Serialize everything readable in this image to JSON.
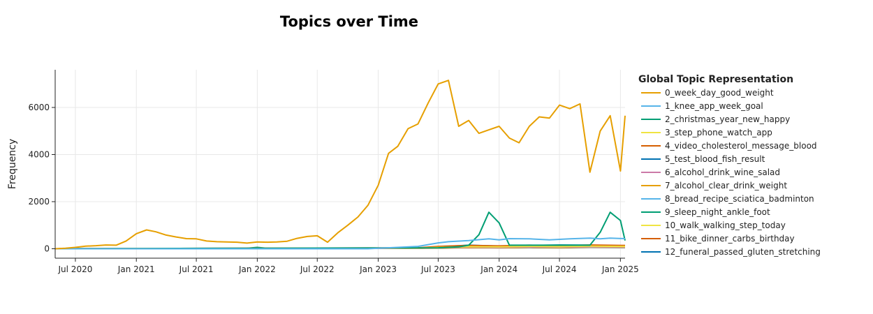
{
  "chart_data": {
    "type": "line",
    "title": "Topics over Time",
    "xlabel": "",
    "ylabel": "Frequency",
    "legend_title": "Global Topic Representation",
    "legend_position": "right",
    "grid": true,
    "x_ticks": [
      "Jul 2020",
      "Jan 2021",
      "Jul 2021",
      "Jan 2022",
      "Jul 2022",
      "Jan 2023",
      "Jul 2023",
      "Jan 2024",
      "Jul 2024",
      "Jan 2025"
    ],
    "x_tick_dates": [
      "2020-07-01",
      "2021-01-01",
      "2021-07-01",
      "2022-01-01",
      "2022-07-01",
      "2023-01-01",
      "2023-07-01",
      "2024-01-01",
      "2024-07-01",
      "2025-01-01"
    ],
    "xlim": [
      "2020-05-01",
      "2025-01-15"
    ],
    "y_ticks": [
      0,
      2000,
      4000,
      6000
    ],
    "ylim": [
      -400,
      7600
    ],
    "series": [
      {
        "name": "0_week_day_good_weight",
        "color": "#E69F00",
        "x": [
          "2020-05-01",
          "2020-06-01",
          "2020-07-01",
          "2020-08-01",
          "2020-09-01",
          "2020-10-01",
          "2020-11-01",
          "2020-12-01",
          "2021-01-01",
          "2021-02-01",
          "2021-03-01",
          "2021-04-01",
          "2021-05-01",
          "2021-06-01",
          "2021-07-01",
          "2021-08-01",
          "2021-09-01",
          "2021-10-01",
          "2021-11-01",
          "2021-12-01",
          "2022-01-01",
          "2022-02-01",
          "2022-03-01",
          "2022-04-01",
          "2022-05-01",
          "2022-06-01",
          "2022-07-01",
          "2022-08-01",
          "2022-09-01",
          "2022-10-01",
          "2022-11-01",
          "2022-12-01",
          "2023-01-01",
          "2023-02-01",
          "2023-03-01",
          "2023-04-01",
          "2023-05-01",
          "2023-06-01",
          "2023-07-01",
          "2023-08-01",
          "2023-09-01",
          "2023-10-01",
          "2023-11-01",
          "2023-12-01",
          "2024-01-01",
          "2024-02-01",
          "2024-03-01",
          "2024-04-01",
          "2024-05-01",
          "2024-06-01",
          "2024-07-01",
          "2024-08-01",
          "2024-09-01",
          "2024-10-01",
          "2024-11-01",
          "2024-12-01",
          "2025-01-01",
          "2025-01-15"
        ],
        "y": [
          0,
          20,
          60,
          110,
          130,
          160,
          150,
          330,
          640,
          800,
          720,
          580,
          500,
          430,
          420,
          330,
          300,
          290,
          280,
          240,
          290,
          280,
          290,
          320,
          440,
          520,
          550,
          280,
          680,
          1000,
          1350,
          1850,
          2700,
          4050,
          4350,
          5100,
          5300,
          6200,
          7000,
          7150,
          5200,
          5450,
          4900,
          5050,
          5200,
          4700,
          4500,
          5200,
          5600,
          5550,
          6100,
          5950,
          6150,
          3250,
          5000,
          5650,
          3300,
          5650
        ]
      },
      {
        "name": "1_knee_app_week_goal",
        "color": "#56B4E9",
        "x": [
          "2020-05-01",
          "2022-12-01",
          "2023-01-01",
          "2023-03-01",
          "2023-05-01",
          "2023-07-01",
          "2023-08-01",
          "2023-10-01",
          "2023-12-01",
          "2024-01-01",
          "2024-02-01",
          "2024-04-01",
          "2024-06-01",
          "2024-08-01",
          "2024-10-01",
          "2024-11-01",
          "2024-12-01",
          "2025-01-15"
        ],
        "y": [
          0,
          0,
          20,
          60,
          100,
          250,
          300,
          350,
          420,
          380,
          430,
          420,
          380,
          420,
          450,
          420,
          450,
          430
        ]
      },
      {
        "name": "2_christmas_year_new_happy",
        "color": "#009E73",
        "x": [
          "2020-05-01",
          "2023-07-01",
          "2023-09-01",
          "2023-10-01",
          "2023-11-01",
          "2023-12-01",
          "2024-01-01",
          "2024-02-01",
          "2024-06-01",
          "2024-08-01",
          "2024-10-01",
          "2024-11-01",
          "2024-12-01",
          "2025-01-01",
          "2025-01-15"
        ],
        "y": [
          0,
          40,
          80,
          150,
          600,
          1550,
          1100,
          150,
          150,
          150,
          150,
          700,
          1550,
          1200,
          350
        ]
      },
      {
        "name": "3_step_phone_watch_app",
        "color": "#F0E442",
        "x": [
          "2020-05-01",
          "2023-05-01",
          "2023-07-01",
          "2023-10-01",
          "2024-01-01",
          "2024-04-01",
          "2024-07-01",
          "2024-10-01",
          "2025-01-15"
        ],
        "y": [
          0,
          30,
          60,
          90,
          80,
          100,
          90,
          110,
          100
        ]
      },
      {
        "name": "4_video_cholesterol_message_blood",
        "color": "#D55E00",
        "x": [
          "2020-05-01",
          "2023-05-01",
          "2023-07-01",
          "2023-10-01",
          "2024-01-01",
          "2024-04-01",
          "2024-07-01",
          "2024-10-01",
          "2025-01-15"
        ],
        "y": [
          0,
          40,
          100,
          140,
          120,
          150,
          130,
          160,
          140
        ]
      },
      {
        "name": "5_test_blood_fish_result",
        "color": "#0072B2",
        "x": [
          "2020-05-01",
          "2023-05-01",
          "2023-07-01",
          "2023-10-01",
          "2024-01-01",
          "2024-04-01",
          "2024-07-01",
          "2024-10-01",
          "2025-01-15"
        ],
        "y": [
          0,
          30,
          80,
          150,
          110,
          140,
          160,
          150,
          120
        ]
      },
      {
        "name": "6_alcohol_drink_wine_salad",
        "color": "#CC79A7",
        "x": [
          "2020-05-01",
          "2023-05-01",
          "2023-07-01",
          "2023-10-01",
          "2024-01-01",
          "2024-04-01",
          "2024-07-01",
          "2024-10-01",
          "2025-01-15"
        ],
        "y": [
          0,
          20,
          50,
          70,
          60,
          80,
          70,
          90,
          80
        ]
      },
      {
        "name": "7_alcohol_clear_drink_weight",
        "color": "#E69F00",
        "x": [
          "2020-05-01",
          "2023-05-01",
          "2023-07-01",
          "2023-10-01",
          "2024-01-01",
          "2024-04-01",
          "2024-07-01",
          "2024-10-01",
          "2025-01-15"
        ],
        "y": [
          0,
          20,
          40,
          60,
          50,
          70,
          60,
          80,
          70
        ]
      },
      {
        "name": "8_bread_recipe_sciatica_badminton",
        "color": "#56B4E9",
        "x": [
          "2020-05-01",
          "2023-05-01",
          "2023-07-01",
          "2023-10-01",
          "2024-01-01",
          "2024-04-01",
          "2024-07-01",
          "2024-10-01",
          "2025-01-15"
        ],
        "y": [
          0,
          20,
          40,
          60,
          50,
          60,
          50,
          70,
          60
        ]
      },
      {
        "name": "9_sleep_night_ankle_foot",
        "color": "#009E73",
        "x": [
          "2020-05-01",
          "2021-12-01",
          "2022-01-01",
          "2022-02-01",
          "2023-05-01",
          "2023-07-01",
          "2023-10-01",
          "2024-01-01",
          "2024-04-01",
          "2024-07-01",
          "2024-10-01",
          "2025-01-15"
        ],
        "y": [
          0,
          20,
          60,
          20,
          30,
          60,
          80,
          70,
          80,
          70,
          90,
          80
        ]
      },
      {
        "name": "10_walk_walking_step_today",
        "color": "#F0E442",
        "x": [
          "2020-05-01",
          "2023-05-01",
          "2023-07-01",
          "2023-10-01",
          "2024-01-01",
          "2024-04-01",
          "2024-07-01",
          "2024-10-01",
          "2025-01-15"
        ],
        "y": [
          0,
          20,
          40,
          60,
          50,
          60,
          50,
          70,
          60
        ]
      },
      {
        "name": "11_bike_dinner_carbs_birthday",
        "color": "#D55E00",
        "x": [
          "2020-05-01",
          "2023-05-01",
          "2023-07-01",
          "2023-10-01",
          "2024-01-01",
          "2024-04-01",
          "2024-07-01",
          "2024-10-01",
          "2025-01-15"
        ],
        "y": [
          0,
          20,
          30,
          50,
          40,
          50,
          40,
          60,
          50
        ]
      },
      {
        "name": "12_funeral_passed_gluten_stretching",
        "color": "#0072B2",
        "x": [
          "2020-05-01",
          "2020-07-01",
          "2023-05-01",
          "2023-07-01",
          "2023-10-01",
          "2024-01-01",
          "2024-04-01",
          "2024-07-01",
          "2024-10-01",
          "2025-01-15"
        ],
        "y": [
          0,
          10,
          20,
          40,
          60,
          50,
          60,
          50,
          70,
          60
        ]
      }
    ]
  }
}
